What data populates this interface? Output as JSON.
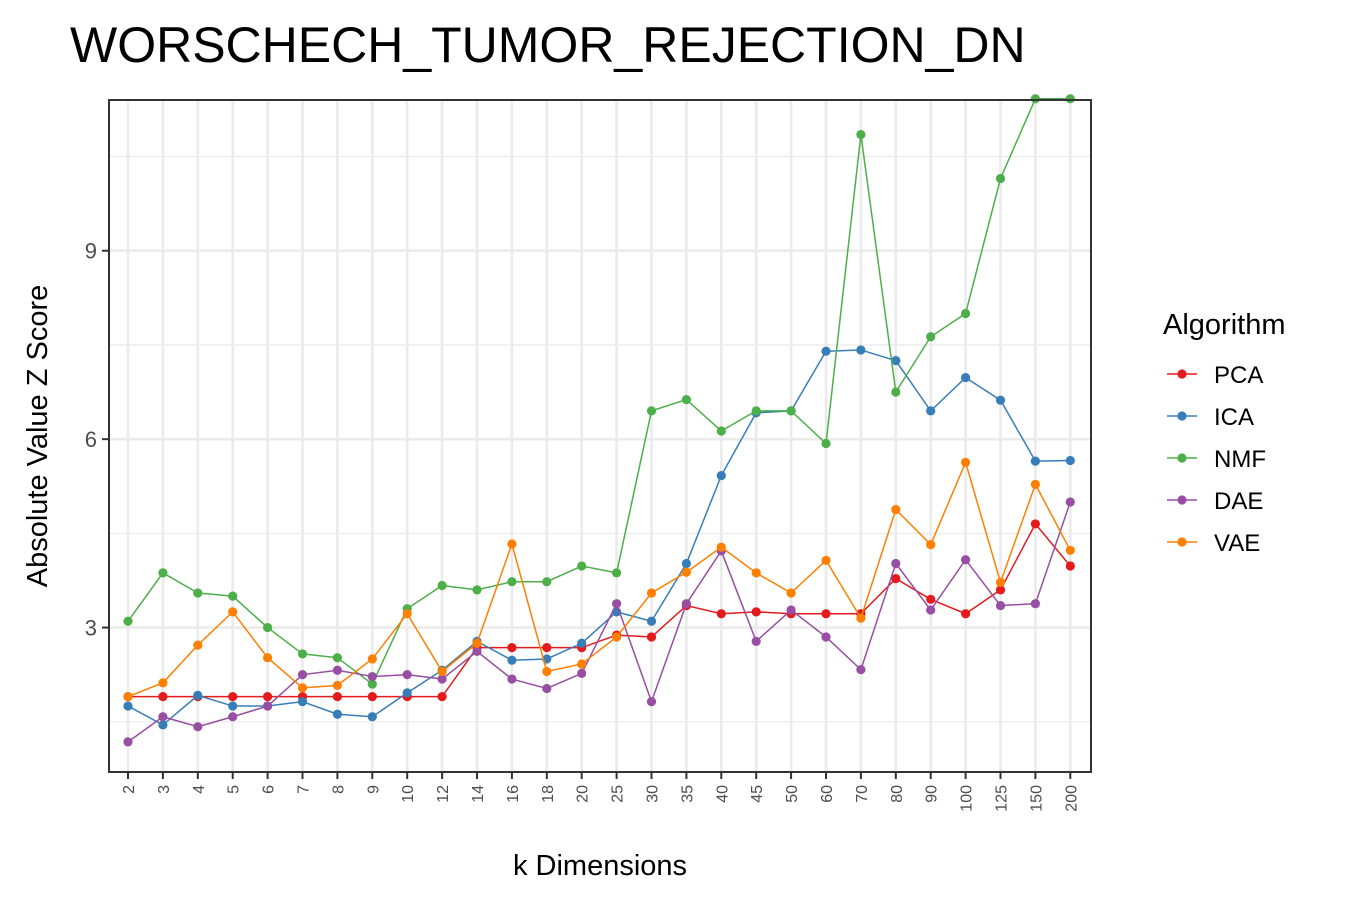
{
  "chart_data": {
    "type": "line",
    "title": "WORSCHECH_TUMOR_REJECTION_DN",
    "xlabel": "k Dimensions",
    "ylabel": "Absolute Value Z Score",
    "categories": [
      "2",
      "3",
      "4",
      "5",
      "6",
      "7",
      "8",
      "9",
      "10",
      "12",
      "14",
      "16",
      "18",
      "20",
      "25",
      "30",
      "35",
      "40",
      "45",
      "50",
      "60",
      "70",
      "80",
      "90",
      "100",
      "125",
      "150",
      "200"
    ],
    "ylim": [
      0.7,
      11.4
    ],
    "yticks": [
      3,
      6,
      9
    ],
    "grid": true,
    "legend": {
      "title": "Algorithm",
      "position": "right"
    },
    "series": [
      {
        "name": "PCA",
        "color": "#e41a1c",
        "values": [
          1.9,
          1.9,
          1.9,
          1.9,
          1.9,
          1.9,
          1.9,
          1.9,
          1.9,
          1.9,
          2.68,
          2.68,
          2.68,
          2.68,
          2.88,
          2.85,
          3.35,
          3.22,
          3.25,
          3.22,
          3.22,
          3.22,
          3.78,
          3.45,
          3.22,
          3.6,
          4.65,
          3.98
        ]
      },
      {
        "name": "ICA",
        "color": "#377eb8",
        "values": [
          1.75,
          1.45,
          1.92,
          1.75,
          1.75,
          1.82,
          1.62,
          1.58,
          1.96,
          2.32,
          2.78,
          2.48,
          2.5,
          2.75,
          3.25,
          3.1,
          4.02,
          5.42,
          6.42,
          6.45,
          7.4,
          7.42,
          7.25,
          6.45,
          6.98,
          6.62,
          5.65,
          5.66
        ]
      },
      {
        "name": "NMF",
        "color": "#4daf4a",
        "values": [
          3.1,
          3.87,
          3.55,
          3.5,
          3.0,
          2.58,
          2.52,
          2.1,
          3.3,
          3.67,
          3.6,
          3.73,
          3.73,
          3.98,
          3.87,
          6.45,
          6.63,
          6.13,
          6.45,
          6.45,
          5.93,
          10.85,
          6.75,
          7.63,
          8.0,
          10.15,
          11.42,
          11.42
        ]
      },
      {
        "name": "DAE",
        "color": "#984ea3",
        "values": [
          1.18,
          1.58,
          1.42,
          1.58,
          1.75,
          2.25,
          2.32,
          2.22,
          2.25,
          2.18,
          2.62,
          2.18,
          2.03,
          2.27,
          3.38,
          1.82,
          3.38,
          4.22,
          2.78,
          3.28,
          2.85,
          2.33,
          4.02,
          3.28,
          4.08,
          3.35,
          3.38,
          5.0
        ]
      },
      {
        "name": "VAE",
        "color": "#ff7f00",
        "values": [
          1.9,
          2.12,
          2.72,
          3.25,
          2.52,
          2.04,
          2.08,
          2.5,
          3.22,
          2.3,
          2.75,
          4.33,
          2.3,
          2.42,
          2.85,
          3.55,
          3.88,
          4.28,
          3.87,
          3.55,
          4.07,
          3.15,
          4.88,
          4.32,
          5.63,
          3.72,
          5.28,
          4.23
        ]
      }
    ]
  }
}
